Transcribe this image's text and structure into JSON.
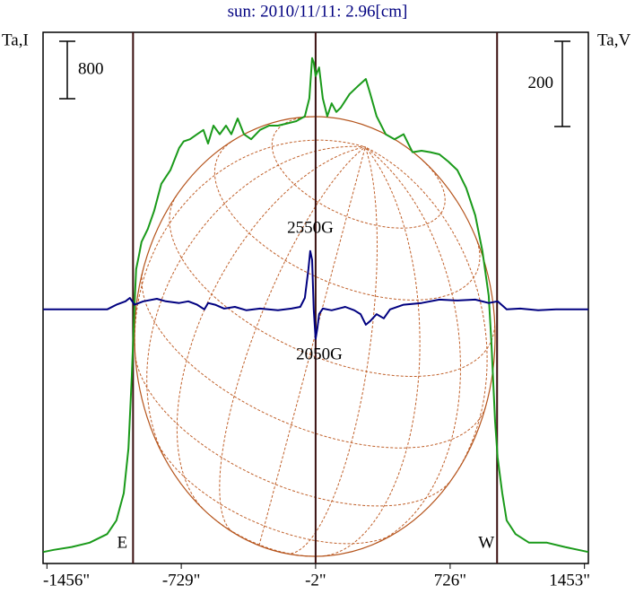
{
  "chart_data": {
    "type": "line",
    "title": "sun: 2010/11/11: 2.96[cm]",
    "ylabel": "Ta,I",
    "y2label": "Ta,V",
    "xlim": [
      -1477,
      1474
    ],
    "ylim": [
      0,
      7400
    ],
    "y2lim": [
      -596,
      650
    ],
    "xticks": [
      {
        "value": -1456,
        "label": "-1456\""
      },
      {
        "value": -729,
        "label": "-729\""
      },
      {
        "value": -2,
        "label": "-2\""
      },
      {
        "value": 726,
        "label": "726\""
      },
      {
        "value": 1453,
        "label": "1453\""
      }
    ],
    "vlines": [
      {
        "x": -990,
        "label": "E"
      },
      {
        "x": -2
      },
      {
        "x": 980,
        "label": "W"
      }
    ],
    "scale_bars": [
      {
        "axis": "y",
        "value": 800
      },
      {
        "axis": "y2",
        "value": 200
      }
    ],
    "annotations": [
      "2550G",
      "2050G"
    ],
    "series": [
      {
        "name": "Ta,I",
        "color": "#1a9a1a",
        "x": [
          -1476,
          -1419,
          -1322,
          -1225,
          -1130,
          -1080,
          -1040,
          -1015,
          -997,
          -982,
          -973,
          -958,
          -944,
          -910,
          -876,
          -837,
          -788,
          -740,
          -716,
          -682,
          -643,
          -609,
          -584,
          -555,
          -521,
          -487,
          -458,
          -424,
          -390,
          -351,
          -303,
          -254,
          -206,
          -157,
          -109,
          -60,
          -36,
          -21,
          -12,
          -2,
          17,
          37,
          61,
          85,
          110,
          134,
          182,
          231,
          270,
          294,
          328,
          377,
          425,
          474,
          522,
          571,
          619,
          668,
          716,
          765,
          813,
          862,
          901,
          935,
          949,
          969,
          983,
          1008,
          1032,
          1080,
          1153,
          1250,
          1347,
          1474
        ],
        "values": [
          160,
          190,
          230,
          290,
          410,
          600,
          980,
          1600,
          2600,
          3600,
          4100,
          4290,
          4480,
          4660,
          4910,
          5290,
          5480,
          5790,
          5880,
          5910,
          5980,
          6040,
          5850,
          6100,
          5980,
          6100,
          5980,
          6200,
          5980,
          5910,
          6040,
          6100,
          6100,
          6130,
          6160,
          6230,
          6480,
          7040,
          6980,
          6790,
          6910,
          6480,
          6230,
          6410,
          6290,
          6350,
          6540,
          6660,
          6750,
          6540,
          6230,
          5980,
          5910,
          5980,
          5730,
          5750,
          5730,
          5700,
          5600,
          5480,
          5230,
          4850,
          4350,
          3730,
          3100,
          1980,
          1480,
          980,
          600,
          410,
          290,
          290,
          230,
          160
        ]
      },
      {
        "name": "Ta,V",
        "color": "#000080",
        "axis": "y2",
        "x": [
          -1476,
          -1130,
          -1080,
          -1031,
          -1007,
          -982,
          -934,
          -861,
          -813,
          -740,
          -691,
          -643,
          -604,
          -584,
          -546,
          -497,
          -439,
          -376,
          -303,
          -206,
          -133,
          -85,
          -60,
          -41,
          -31,
          -21,
          -12,
          -2,
          8,
          17,
          37,
          85,
          158,
          207,
          241,
          270,
          294,
          328,
          367,
          401,
          474,
          571,
          668,
          765,
          862,
          935,
          983,
          1032,
          1105,
          1202,
          1299,
          1474
        ],
        "values": [
          0,
          0,
          11,
          19,
          27,
          11,
          19,
          25,
          19,
          15,
          19,
          11,
          0,
          15,
          11,
          2,
          6,
          -2,
          2,
          -2,
          2,
          6,
          27,
          95,
          137,
          116,
          0,
          -69,
          -42,
          -11,
          2,
          -2,
          6,
          -2,
          -11,
          -36,
          -27,
          -11,
          -21,
          0,
          11,
          15,
          23,
          21,
          23,
          15,
          19,
          0,
          2,
          -2,
          0,
          0
        ]
      }
    ]
  }
}
